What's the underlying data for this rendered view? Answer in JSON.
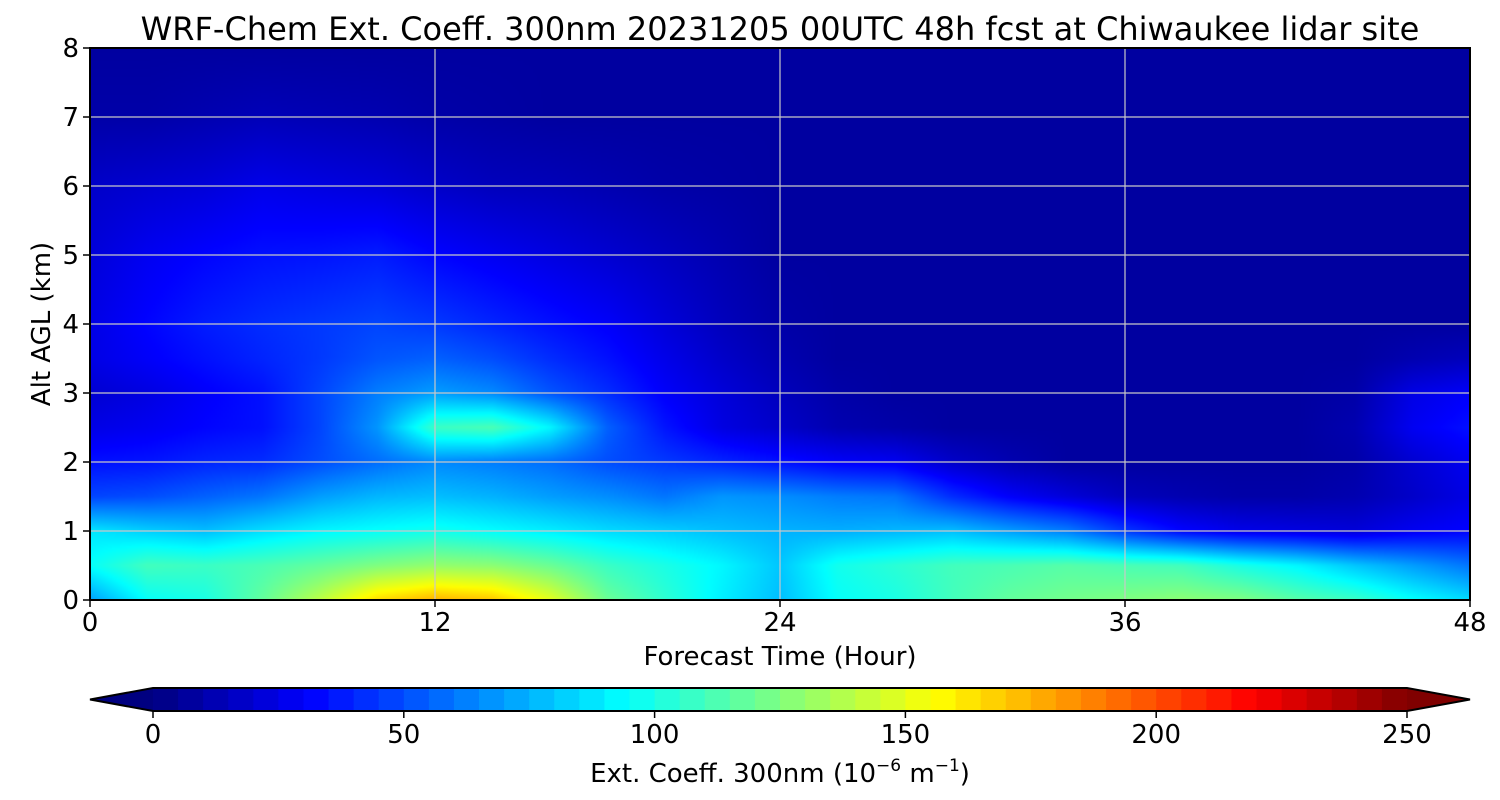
{
  "chart_data": {
    "type": "heatmap",
    "title": "WRF-Chem Ext. Coeff. 300nm  20231205 00UTC 48h fcst at Chiwaukee lidar site",
    "xlabel": "Forecast Time (Hour)",
    "ylabel": "Alt AGL (km)",
    "xlim": [
      0,
      48
    ],
    "ylim": [
      0,
      8
    ],
    "xticks": [
      0,
      12,
      24,
      36,
      48
    ],
    "yticks": [
      0,
      1,
      2,
      3,
      4,
      5,
      6,
      7,
      8
    ],
    "grid": true,
    "colormap": "jet",
    "colorbar": {
      "label_main": "Ext. Coeff. 300nm  (10",
      "label_exp1": "−6",
      "label_mid": " m",
      "label_exp2": "−1",
      "label_end": ")",
      "vmin": 0,
      "vmax": 250,
      "ticks": [
        0,
        50,
        100,
        150,
        200,
        250
      ],
      "extend": "both",
      "orientation": "horizontal",
      "placement": "bottom"
    },
    "x": [
      0,
      2,
      4,
      6,
      8,
      10,
      12,
      14,
      16,
      18,
      20,
      22,
      24,
      26,
      28,
      30,
      32,
      34,
      36,
      38,
      40,
      42,
      44,
      46,
      48
    ],
    "y": [
      0,
      0.5,
      1,
      1.5,
      2,
      2.5,
      3,
      3.5,
      4,
      5,
      6,
      7,
      8
    ],
    "z": [
      [
        70,
        95,
        100,
        118,
        140,
        165,
        175,
        170,
        150,
        120,
        105,
        90,
        78,
        95,
        100,
        110,
        118,
        122,
        125,
        128,
        125,
        115,
        108,
        95,
        85
      ],
      [
        95,
        110,
        108,
        112,
        118,
        125,
        130,
        128,
        120,
        108,
        100,
        92,
        80,
        98,
        104,
        110,
        112,
        115,
        112,
        110,
        100,
        92,
        80,
        70,
        60
      ],
      [
        88,
        82,
        78,
        86,
        92,
        95,
        98,
        94,
        90,
        85,
        82,
        78,
        75,
        74,
        76,
        78,
        70,
        62,
        45,
        32,
        26,
        24,
        22,
        28,
        32
      ],
      [
        48,
        50,
        55,
        60,
        70,
        76,
        78,
        75,
        70,
        66,
        60,
        68,
        66,
        62,
        60,
        42,
        30,
        22,
        15,
        12,
        10,
        10,
        12,
        18,
        25
      ],
      [
        35,
        36,
        40,
        42,
        50,
        58,
        65,
        62,
        58,
        50,
        45,
        40,
        35,
        30,
        28,
        18,
        12,
        8,
        8,
        8,
        8,
        8,
        10,
        20,
        28
      ],
      [
        25,
        28,
        32,
        35,
        48,
        68,
        108,
        112,
        92,
        55,
        36,
        24,
        18,
        12,
        10,
        8,
        8,
        8,
        8,
        8,
        8,
        8,
        12,
        28,
        35
      ],
      [
        20,
        24,
        30,
        35,
        48,
        62,
        70,
        65,
        52,
        42,
        30,
        22,
        15,
        10,
        8,
        8,
        8,
        8,
        8,
        8,
        8,
        8,
        10,
        25,
        30
      ],
      [
        25,
        30,
        35,
        40,
        45,
        52,
        55,
        50,
        42,
        35,
        26,
        18,
        12,
        8,
        8,
        8,
        8,
        8,
        8,
        8,
        8,
        8,
        8,
        12,
        15
      ],
      [
        25,
        32,
        38,
        42,
        45,
        48,
        45,
        40,
        35,
        30,
        22,
        15,
        10,
        8,
        8,
        8,
        8,
        8,
        8,
        8,
        8,
        8,
        8,
        8,
        8
      ],
      [
        22,
        28,
        32,
        35,
        36,
        38,
        32,
        28,
        24,
        20,
        16,
        12,
        8,
        8,
        8,
        8,
        8,
        8,
        8,
        8,
        8,
        8,
        8,
        8,
        8
      ],
      [
        18,
        20,
        22,
        26,
        24,
        22,
        18,
        15,
        14,
        12,
        10,
        9,
        8,
        8,
        8,
        8,
        8,
        8,
        8,
        8,
        8,
        8,
        8,
        8,
        8
      ],
      [
        10,
        10,
        12,
        14,
        13,
        12,
        10,
        9,
        8,
        8,
        8,
        8,
        8,
        8,
        8,
        8,
        8,
        8,
        8,
        8,
        8,
        8,
        8,
        8,
        8
      ],
      [
        8,
        8,
        8,
        8,
        8,
        8,
        8,
        8,
        8,
        8,
        8,
        8,
        8,
        8,
        8,
        8,
        8,
        8,
        8,
        8,
        8,
        8,
        8,
        8,
        8
      ]
    ]
  }
}
